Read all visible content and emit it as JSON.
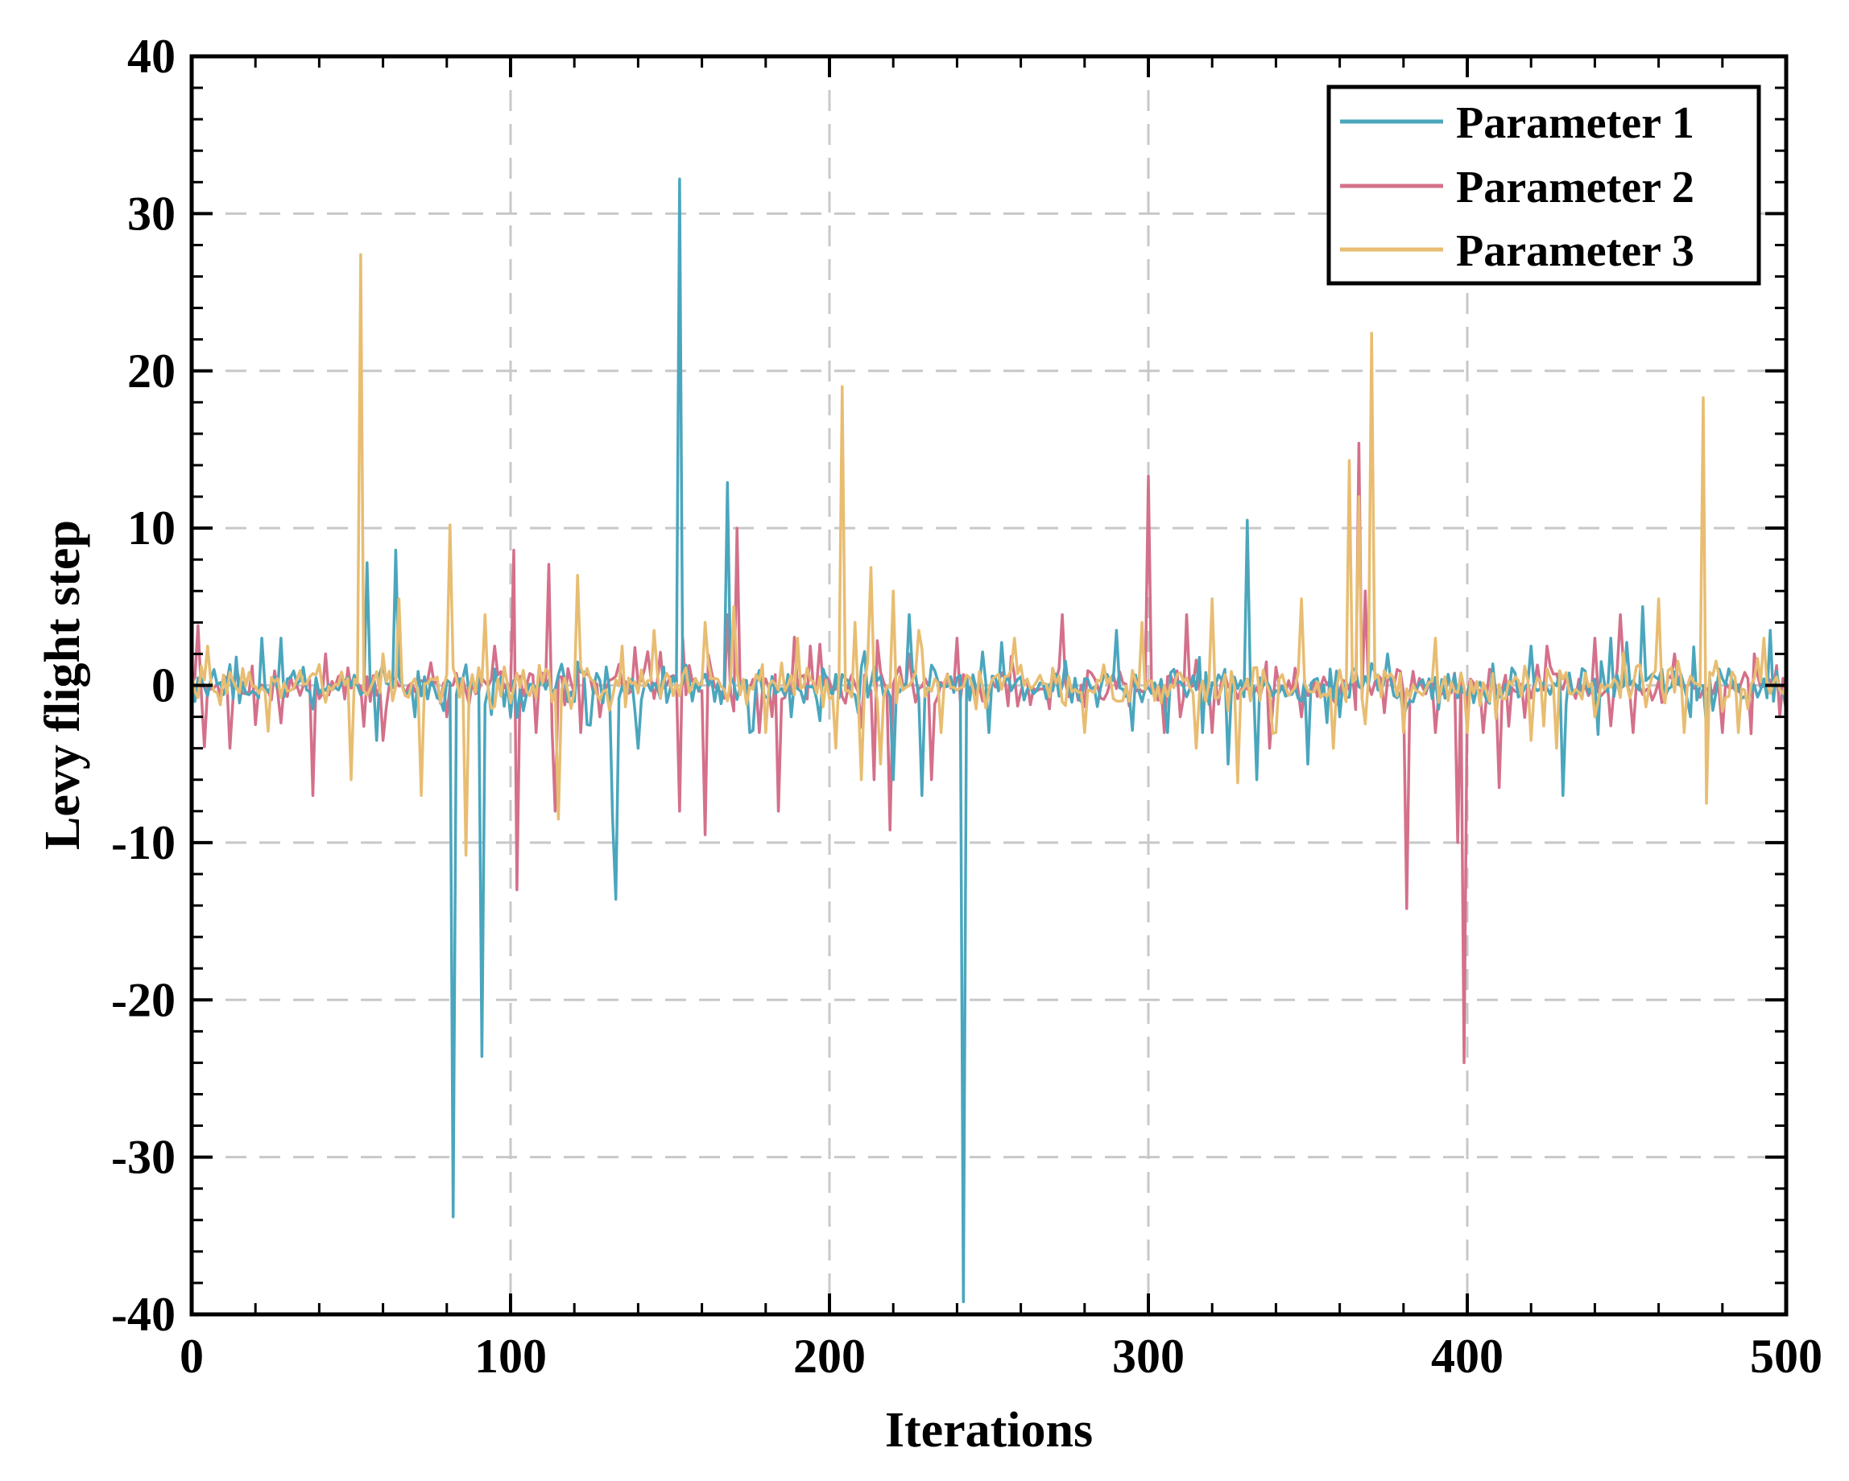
{
  "chart_data": {
    "type": "line",
    "title": "",
    "xlabel": "Iterations",
    "ylabel": "Levy flight step",
    "xlim": [
      0,
      500
    ],
    "ylim": [
      -40,
      40
    ],
    "xticks": [
      0,
      100,
      200,
      300,
      400,
      500
    ],
    "yticks": [
      -40,
      -30,
      -20,
      -10,
      0,
      10,
      20,
      30,
      40
    ],
    "grid": true,
    "legend_position": "top-right",
    "iterations": 500,
    "series": [
      {
        "name": "Parameter 1",
        "color": "#4aa6bd",
        "noise_amplitude": 1.1,
        "spikes": [
          [
            22,
            3
          ],
          [
            28,
            3
          ],
          [
            38,
            -1.5
          ],
          [
            55,
            7.8
          ],
          [
            58,
            -3.5
          ],
          [
            64,
            8.6
          ],
          [
            70,
            -2
          ],
          [
            82,
            -33.8
          ],
          [
            91,
            -23.6
          ],
          [
            100,
            -2
          ],
          [
            124,
            -2.5
          ],
          [
            132,
            -8.5
          ],
          [
            133,
            -13.6
          ],
          [
            140,
            -4
          ],
          [
            153,
            32.2
          ],
          [
            168,
            12.9
          ],
          [
            175,
            -3
          ],
          [
            188,
            -2
          ],
          [
            220,
            -6
          ],
          [
            225,
            4.5
          ],
          [
            229,
            -7
          ],
          [
            242,
            -39.2
          ],
          [
            250,
            -3
          ],
          [
            290,
            3.5
          ],
          [
            306,
            -3
          ],
          [
            317,
            -3
          ],
          [
            325,
            -5
          ],
          [
            331,
            10.5
          ],
          [
            334,
            -6
          ],
          [
            350,
            -5
          ],
          [
            360,
            -2
          ],
          [
            375,
            2
          ],
          [
            380,
            -2
          ],
          [
            420,
            2.5
          ],
          [
            430,
            -7
          ],
          [
            445,
            3
          ],
          [
            455,
            5
          ],
          [
            470,
            -2
          ],
          [
            495,
            3.5
          ]
        ]
      },
      {
        "name": "Parameter 2",
        "color": "#d4708a",
        "noise_amplitude": 1.0,
        "spikes": [
          [
            2,
            3.8
          ],
          [
            12,
            -4
          ],
          [
            20,
            -2.5
          ],
          [
            38,
            -7
          ],
          [
            42,
            2
          ],
          [
            60,
            -3.5
          ],
          [
            80,
            -2
          ],
          [
            95,
            2.5
          ],
          [
            101,
            8.6
          ],
          [
            102,
            -13
          ],
          [
            108,
            -3
          ],
          [
            112,
            7.7
          ],
          [
            114,
            -8
          ],
          [
            122,
            -3
          ],
          [
            128,
            -2
          ],
          [
            153,
            -8
          ],
          [
            154,
            3
          ],
          [
            161,
            -9.5
          ],
          [
            168,
            4.5
          ],
          [
            171,
            10
          ],
          [
            178,
            -3
          ],
          [
            184,
            -8
          ],
          [
            194,
            2.5
          ],
          [
            214,
            -6
          ],
          [
            219,
            -9.2
          ],
          [
            225,
            2
          ],
          [
            232,
            -6
          ],
          [
            240,
            3
          ],
          [
            273,
            4.5
          ],
          [
            300,
            13.3
          ],
          [
            305,
            -3
          ],
          [
            310,
            -2
          ],
          [
            312,
            4.5
          ],
          [
            320,
            -3
          ],
          [
            338,
            -4
          ],
          [
            348,
            -2
          ],
          [
            366,
            15.4
          ],
          [
            368,
            6
          ],
          [
            381,
            -14.2
          ],
          [
            390,
            -3
          ],
          [
            397,
            -10
          ],
          [
            399,
            -24
          ],
          [
            405,
            -3
          ],
          [
            410,
            -6.5
          ],
          [
            425,
            2.5
          ],
          [
            440,
            3
          ],
          [
            448,
            4.5
          ],
          [
            452,
            -3
          ],
          [
            465,
            2
          ],
          [
            480,
            -3
          ],
          [
            490,
            2
          ],
          [
            498,
            -2
          ]
        ]
      },
      {
        "name": "Parameter 3",
        "color": "#e8bd72",
        "noise_amplitude": 1.1,
        "spikes": [
          [
            5,
            2.5
          ],
          [
            50,
            -6
          ],
          [
            53,
            27.4
          ],
          [
            60,
            2
          ],
          [
            65,
            5.5
          ],
          [
            72,
            -7
          ],
          [
            81,
            10.2
          ],
          [
            86,
            -10.8
          ],
          [
            92,
            4.5
          ],
          [
            115,
            -8.5
          ],
          [
            121,
            7
          ],
          [
            135,
            2.5
          ],
          [
            145,
            3.5
          ],
          [
            161,
            4
          ],
          [
            170,
            5
          ],
          [
            180,
            -3
          ],
          [
            190,
            3
          ],
          [
            202,
            -4
          ],
          [
            204,
            19
          ],
          [
            208,
            4
          ],
          [
            210,
            -6
          ],
          [
            213,
            7.5
          ],
          [
            216,
            -5
          ],
          [
            220,
            6
          ],
          [
            228,
            3.5
          ],
          [
            235,
            -3
          ],
          [
            258,
            3
          ],
          [
            280,
            -3
          ],
          [
            298,
            4
          ],
          [
            315,
            -4
          ],
          [
            320,
            5.5
          ],
          [
            328,
            -6.2
          ],
          [
            340,
            -3
          ],
          [
            348,
            5.5
          ],
          [
            358,
            -4
          ],
          [
            363,
            14.3
          ],
          [
            366,
            12
          ],
          [
            370,
            22.4
          ],
          [
            380,
            -3
          ],
          [
            390,
            3
          ],
          [
            400,
            -3
          ],
          [
            420,
            -3.5
          ],
          [
            428,
            -4
          ],
          [
            440,
            -2
          ],
          [
            460,
            5.5
          ],
          [
            468,
            -3
          ],
          [
            474,
            18.3
          ],
          [
            475,
            -7.5
          ],
          [
            485,
            -3
          ],
          [
            493,
            3
          ]
        ]
      }
    ]
  }
}
